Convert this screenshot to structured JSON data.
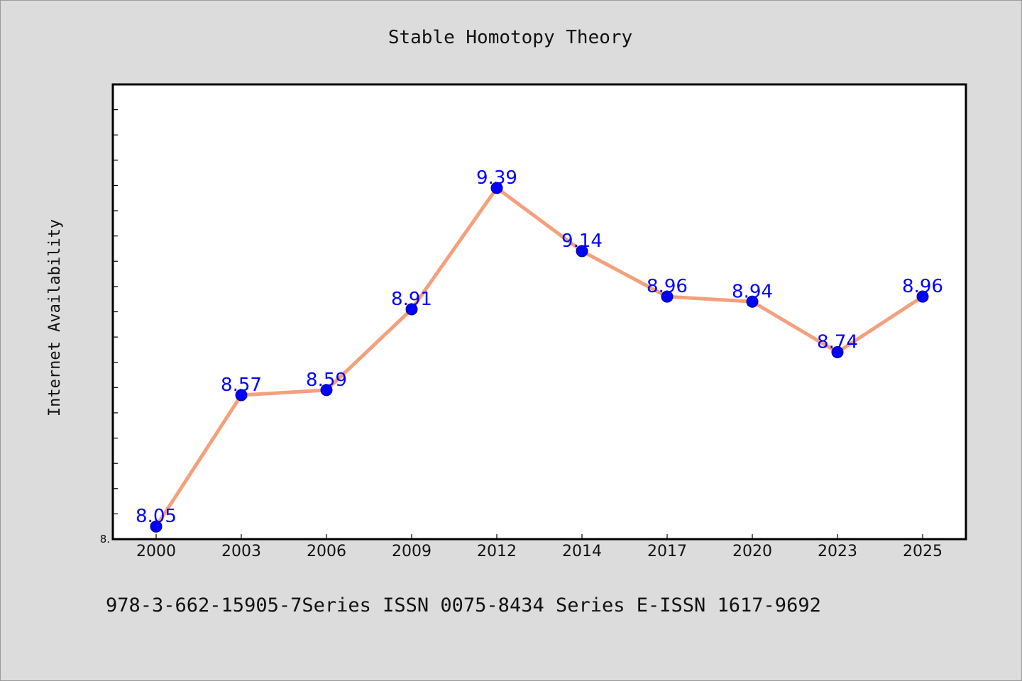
{
  "chart_data": {
    "type": "line",
    "title": "Stable Homotopy Theory",
    "ylabel": "Internet Availability",
    "xlabel": "",
    "categories": [
      "2000",
      "2003",
      "2006",
      "2009",
      "2012",
      "2014",
      "2017",
      "2020",
      "2023",
      "2025"
    ],
    "series": [
      {
        "values": [
          8.05,
          8.57,
          8.59,
          8.91,
          9.39,
          9.14,
          8.96,
          8.94,
          8.74,
          8.96
        ],
        "labels": [
          "8.05",
          "8.57",
          "8.59",
          "8.91",
          "9.39",
          "9.14",
          "8.96",
          "8.94",
          "8.74",
          "8.96"
        ]
      }
    ],
    "ylim": [
      8.0,
      9.8
    ],
    "ytick_labels": [
      {
        "value": 8.0,
        "label": "8."
      }
    ],
    "y_minor_step": 0.1,
    "grid": false,
    "legend": "none",
    "footer": "978-3-662-15905-7Series ISSN 0075-8434 Series E-ISSN 1617-9692",
    "colors": {
      "background": "#dcdcdc",
      "plot_background": "#ffffff",
      "line": "#f4a07c",
      "marker": "#0000ff",
      "label": "#0000ff"
    }
  }
}
